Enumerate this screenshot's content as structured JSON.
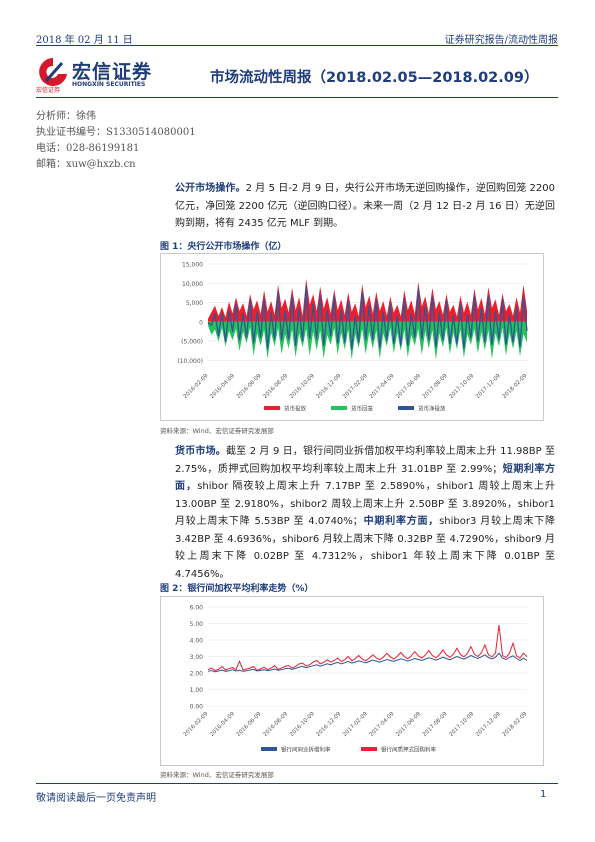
{
  "header": {
    "date": "2018 年 02 月 11 日",
    "category": "证券研究报告/流动性周报"
  },
  "logo": {
    "name_cn": "宏信证券",
    "name_en": "HONGXIN SECURITIES",
    "sub": "宏信证券",
    "color": "#d7182a"
  },
  "report_title": "市场流动性周报（2018.02.05—2018.02.09）",
  "analyst": {
    "name": "分析师：徐伟",
    "license": "执业证书编号：S1330514080001",
    "phone": "电话：028-86199181",
    "email": "邮箱：xuw@hxzb.cn"
  },
  "sections": {
    "open_market": {
      "lead": "公开市场操作。",
      "body": "2 月 5 日-2 月 9 日，央行公开市场无逆回购操作，逆回购回笼 2200 亿元，净回笼 2200 亿元（逆回购口径）。未来一周（2 月 12 日-2 月 16 日）无逆回购到期，将有 2435 亿元 MLF 到期。"
    },
    "money_market": {
      "lead1": "货币市场。",
      "body1": "截至 2 月 9 日，银行间同业拆借加权平均利率较上周末上升 11.98BP 至 2.75%，质押式回购加权平均利率较上周末上升 31.01BP 至 2.99%；",
      "lead2": "短期利率方面，",
      "body2": "shibor 隔夜较上周末上升 7.17BP 至 2.5890%，shibor1 周较上周末上升 13.00BP 至 2.9180%，shibor2 周较上周末上升 2.50BP 至 3.8920%，shibor1 月较上周末下降 5.53BP 至 4.0740%；",
      "lead3": "中期利率方面，",
      "body3": "shibor3 月较上周末下降 3.42BP 至 4.6936%，shibor6 月较上周末下降 0.32BP 至 4.7290%，shibor9 月较上周末下降 0.02BP 至 4.7312%，shibor1 年较上周末下降 0.01BP 至 4.7456%。"
    }
  },
  "figures": {
    "fig1_title": "图 1：央行公开市场操作（亿）",
    "fig1_source": "资料来源：Wind、宏信证券研究发展部",
    "fig2_title": "图 2：银行间加权平均利率走势（%）",
    "fig2_source": "资料来源：Wind、宏信证券研究发展部"
  },
  "chart_data": [
    {
      "type": "area",
      "title": "",
      "y_ticks": [
        "15,000",
        "10,000",
        "5,000",
        "0",
        "(5,000)",
        "(10,000)"
      ],
      "y_tick_values": [
        15000,
        10000,
        5000,
        0,
        -5000,
        -10000
      ],
      "ylim": [
        -12000,
        15000
      ],
      "x_ticks": [
        "2016-02-09",
        "2016-04-09",
        "2016-06-09",
        "2016-08-09",
        "2016-10-09",
        "2016-12-09",
        "2017-02-09",
        "2017-04-09",
        "2017-06-09",
        "2017-08-09",
        "2017-10-09",
        "2017-12-09",
        "2018-02-09"
      ],
      "legend": [
        "货币投放",
        "货币回笼",
        "货币净投放"
      ],
      "colors": {
        "inject": "#e8202f",
        "withdraw": "#22c35a",
        "net": "#2f5597"
      },
      "inject": [
        800,
        2500,
        4200,
        1500,
        3800,
        1200,
        5200,
        2200,
        6400,
        2800,
        4800,
        1500,
        7200,
        3200,
        5600,
        2000,
        8200,
        2600,
        5400,
        1800,
        9600,
        3600,
        6000,
        2400,
        8800,
        3000,
        6400,
        1600,
        11200,
        4400,
        7200,
        2800,
        9200,
        3400,
        6400,
        2200,
        8400,
        3000,
        5800,
        1800,
        7600,
        2600,
        4800,
        1400,
        9800,
        3800,
        6800,
        2200,
        7800,
        2800,
        5400,
        1600,
        6600,
        2400,
        4400,
        1400,
        8200,
        3000,
        5600,
        2000,
        10400,
        4000,
        6600,
        2200,
        8800,
        3200,
        5400,
        1800,
        7200,
        2600,
        4400,
        1400,
        6800,
        2400,
        5200,
        1800,
        8600,
        3200,
        6200,
        2000,
        9000,
        3600,
        5800,
        1800,
        7400,
        2800,
        4600,
        1600,
        6400,
        2400,
        9600,
        3000
      ],
      "withdraw": [
        -1000,
        -3400,
        -2000,
        -5200,
        -1600,
        -6400,
        -2400,
        -4800,
        -1800,
        -7600,
        -2600,
        -5600,
        -1400,
        -8800,
        -3000,
        -6200,
        -2200,
        -9600,
        -2800,
        -6400,
        -1600,
        -8400,
        -3200,
        -7000,
        -2000,
        -9200,
        -3000,
        -6600,
        -1800,
        -8800,
        -2600,
        -7400,
        -2200,
        -9600,
        -3400,
        -6000,
        -1600,
        -8600,
        -2800,
        -7200,
        -2000,
        -9800,
        -3200,
        -6800,
        -1800,
        -8400,
        -2600,
        -7000,
        -2200,
        -9600,
        -3000,
        -6400,
        -1600,
        -8200,
        -2800,
        -7600,
        -2000,
        -9200,
        -3400,
        -6200,
        -1800,
        -8600,
        -2400,
        -7000,
        -2200,
        -9800,
        -3000,
        -6600,
        -1600,
        -8400,
        -2800,
        -7200,
        -2000,
        -9400,
        -3200,
        -6000,
        -1800,
        -8200,
        -2600,
        -7400,
        -2200,
        -9600,
        -3000,
        -6400,
        -1600,
        -8800,
        -2800,
        -7000,
        -2400,
        -9000,
        -3200,
        -5400
      ],
      "net": [
        -200,
        -900,
        2200,
        -3700,
        2200,
        -5200,
        2800,
        -2600,
        4600,
        -4800,
        2200,
        -4100,
        5800,
        -5600,
        2600,
        -4200,
        6000,
        -7000,
        2600,
        -4600,
        8000,
        -4800,
        2800,
        -4600,
        6800,
        -6200,
        3400,
        -5000,
        9400,
        -4400,
        4600,
        -4600,
        7000,
        -6200,
        3000,
        -3800,
        6800,
        -5600,
        3000,
        -5400,
        5600,
        -7200,
        1600,
        -5400,
        8000,
        -4600,
        4200,
        -4800,
        5600,
        -6800,
        2400,
        -4800,
        5000,
        -5800,
        1600,
        -6200,
        6200,
        -6200,
        2200,
        -4200,
        8600,
        -4600,
        4200,
        -4800,
        6600,
        -6600,
        2400,
        -4800,
        5600,
        -5800,
        1600,
        -5800,
        4800,
        -7000,
        2000,
        -4200,
        6800,
        -5000,
        3600,
        -5400,
        6800,
        -6000,
        2800,
        -4600,
        5800,
        -6000,
        1800,
        -5400,
        4000,
        -6600,
        6400,
        -2400
      ]
    },
    {
      "type": "line",
      "title": "",
      "y_ticks": [
        "6.00",
        "5.00",
        "4.00",
        "3.00",
        "2.00",
        "1.00",
        "0.00"
      ],
      "y_tick_values": [
        6,
        5,
        4,
        3,
        2,
        1,
        0
      ],
      "ylim": [
        0,
        6
      ],
      "x_ticks": [
        "2016-02-09",
        "2016-04-09",
        "2016-06-09",
        "2016-08-09",
        "2016-10-09",
        "2016-12-09",
        "2017-02-09",
        "2017-04-09",
        "2017-06-09",
        "2017-08-09",
        "2017-10-09",
        "2017-12-09",
        "2018-02-09"
      ],
      "legend": [
        "银行间同业拆借利率",
        "银行间质押式回购利率"
      ],
      "colors": {
        "interbank": "#2f5597",
        "repo": "#e8202f"
      },
      "interbank": [
        2.1,
        2.15,
        2.08,
        2.12,
        2.18,
        2.1,
        2.14,
        2.2,
        2.12,
        2.16,
        2.1,
        2.14,
        2.18,
        2.22,
        2.12,
        2.16,
        2.2,
        2.14,
        2.18,
        2.24,
        2.16,
        2.2,
        2.26,
        2.3,
        2.22,
        2.28,
        2.36,
        2.4,
        2.32,
        2.38,
        2.44,
        2.5,
        2.42,
        2.48,
        2.56,
        2.5,
        2.58,
        2.64,
        2.56,
        2.62,
        2.7,
        2.6,
        2.66,
        2.74,
        2.68,
        2.62,
        2.7,
        2.78,
        2.72,
        2.66,
        2.74,
        2.82,
        2.76,
        2.7,
        2.78,
        2.86,
        2.8,
        2.72,
        2.8,
        2.88,
        2.82,
        2.76,
        2.84,
        2.92,
        2.86,
        2.78,
        2.86,
        2.96,
        2.88,
        2.8,
        2.9,
        3.0,
        2.92,
        2.84,
        2.94,
        3.06,
        2.96,
        2.88,
        2.98,
        3.1,
        2.94,
        2.86,
        2.96,
        3.2,
        2.9,
        2.82,
        2.94,
        3.04,
        2.88,
        2.76,
        2.9,
        2.75
      ],
      "repo": [
        2.2,
        2.3,
        2.15,
        2.22,
        2.4,
        2.18,
        2.26,
        2.34,
        2.2,
        2.7,
        2.18,
        2.24,
        2.3,
        2.4,
        2.16,
        2.24,
        2.36,
        2.2,
        2.3,
        2.44,
        2.22,
        2.3,
        2.4,
        2.46,
        2.3,
        2.4,
        2.56,
        2.6,
        2.42,
        2.5,
        2.66,
        2.76,
        2.56,
        2.64,
        2.8,
        2.66,
        2.76,
        2.9,
        2.7,
        2.8,
        3.0,
        2.74,
        2.86,
        3.06,
        2.84,
        2.74,
        2.9,
        3.1,
        2.92,
        2.8,
        2.96,
        3.2,
        2.98,
        2.84,
        3.02,
        3.24,
        3.0,
        2.86,
        3.04,
        3.3,
        3.04,
        2.9,
        3.08,
        3.36,
        3.06,
        2.92,
        3.1,
        3.4,
        3.1,
        2.96,
        3.14,
        3.5,
        3.12,
        2.98,
        3.18,
        3.6,
        3.14,
        3.0,
        3.22,
        3.7,
        3.1,
        2.98,
        3.2,
        4.9,
        3.06,
        2.94,
        3.2,
        3.8,
        3.04,
        2.9,
        3.2,
        2.99
      ]
    }
  ]
}
